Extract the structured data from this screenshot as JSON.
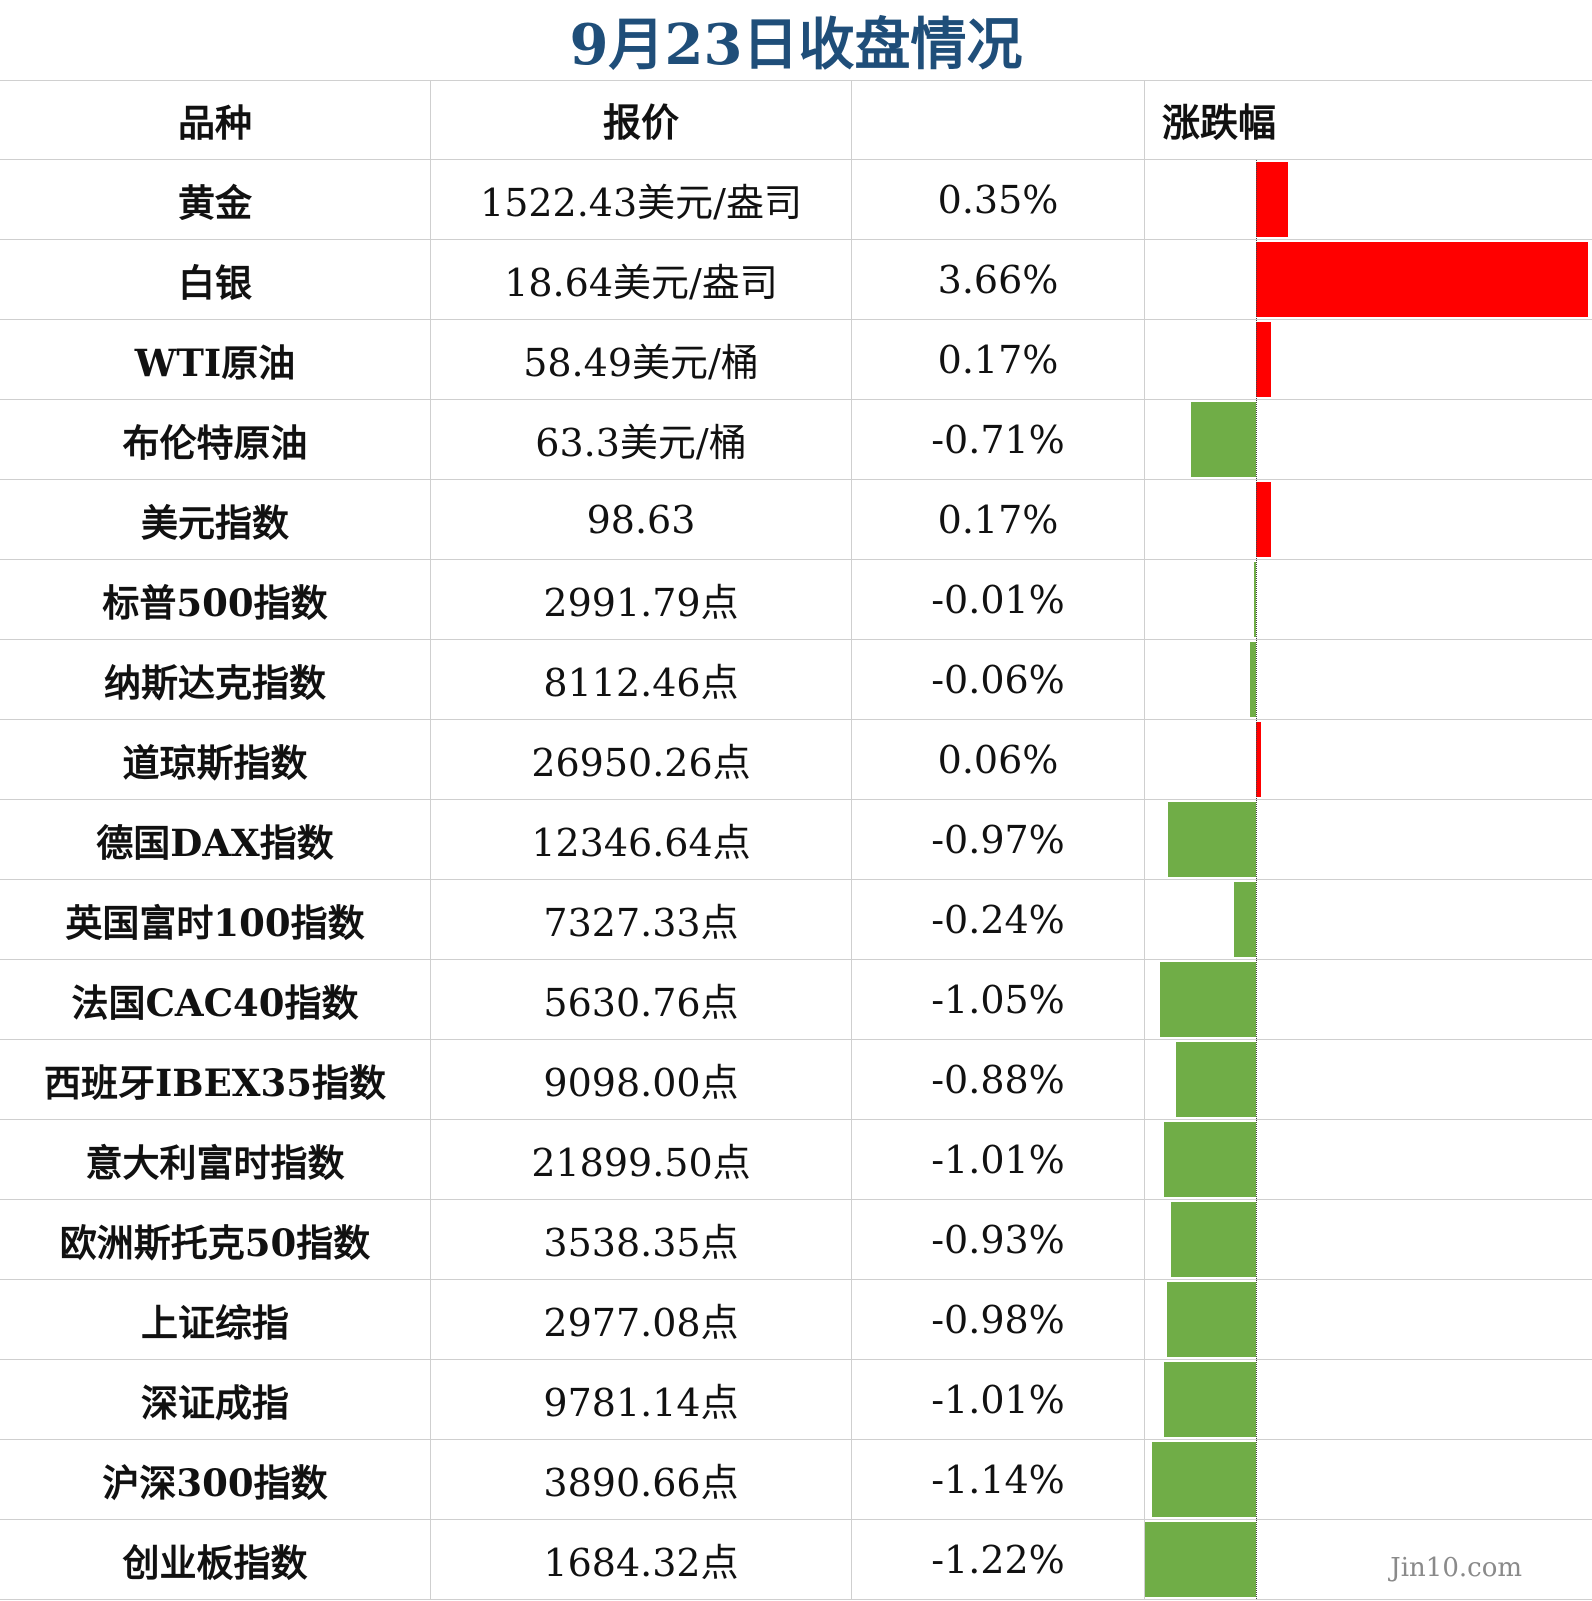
{
  "title": "9月23日收盘情况",
  "headers": {
    "name": "品种",
    "price": "报价",
    "change": "涨跌幅"
  },
  "colors": {
    "up": "#ff0000",
    "down": "#70ad47",
    "title": "#1f4e79"
  },
  "watermark": "Jin10.com",
  "chart_data": {
    "type": "bar",
    "orientation": "horizontal",
    "categories": [
      "黄金",
      "白银",
      "WTI原油",
      "布伦特原油",
      "美元指数",
      "标普500指数",
      "纳斯达克指数",
      "道琼斯指数",
      "德国DAX指数",
      "英国富时100指数",
      "法国CAC40指数",
      "西班牙IBEX35指数",
      "意大利富时指数",
      "欧洲斯托克50指数",
      "上证综指",
      "深证成指",
      "沪深300指数",
      "创业板指数"
    ],
    "values": [
      0.35,
      3.66,
      0.17,
      -0.71,
      0.17,
      -0.01,
      -0.06,
      0.06,
      -0.97,
      -0.24,
      -1.05,
      -0.88,
      -1.01,
      -0.93,
      -0.98,
      -1.01,
      -1.14,
      -1.22
    ],
    "title": "9月23日收盘情况",
    "xlim": [
      -1.22,
      3.66
    ]
  },
  "rows": [
    {
      "name": "黄金",
      "price": "1522.43美元/盎司",
      "change": "0.35%"
    },
    {
      "name": "白银",
      "price": "18.64美元/盎司",
      "change": "3.66%"
    },
    {
      "name": "WTI原油",
      "price": "58.49美元/桶",
      "change": "0.17%"
    },
    {
      "name": "布伦特原油",
      "price": "63.3美元/桶",
      "change": "-0.71%"
    },
    {
      "name": "美元指数",
      "price": "98.63",
      "change": "0.17%"
    },
    {
      "name": "标普500指数",
      "price": "2991.79点",
      "change": "-0.01%"
    },
    {
      "name": "纳斯达克指数",
      "price": "8112.46点",
      "change": "-0.06%"
    },
    {
      "name": "道琼斯指数",
      "price": "26950.26点",
      "change": "0.06%"
    },
    {
      "name": "德国DAX指数",
      "price": "12346.64点",
      "change": "-0.97%"
    },
    {
      "name": "英国富时100指数",
      "price": "7327.33点",
      "change": "-0.24%"
    },
    {
      "name": "法国CAC40指数",
      "price": "5630.76点",
      "change": "-1.05%"
    },
    {
      "name": "西班牙IBEX35指数",
      "price": "9098.00点",
      "change": "-0.88%"
    },
    {
      "name": "意大利富时指数",
      "price": "21899.50点",
      "change": "-1.01%"
    },
    {
      "name": "欧洲斯托克50指数",
      "price": "3538.35点",
      "change": "-0.93%"
    },
    {
      "name": "上证综指",
      "price": "2977.08点",
      "change": "-0.98%"
    },
    {
      "name": "深证成指",
      "price": "9781.14点",
      "change": "-1.01%"
    },
    {
      "name": "沪深300指数",
      "price": "3890.66点",
      "change": "-1.14%"
    },
    {
      "name": "创业板指数",
      "price": "1684.32点",
      "change": "-1.22%"
    }
  ]
}
